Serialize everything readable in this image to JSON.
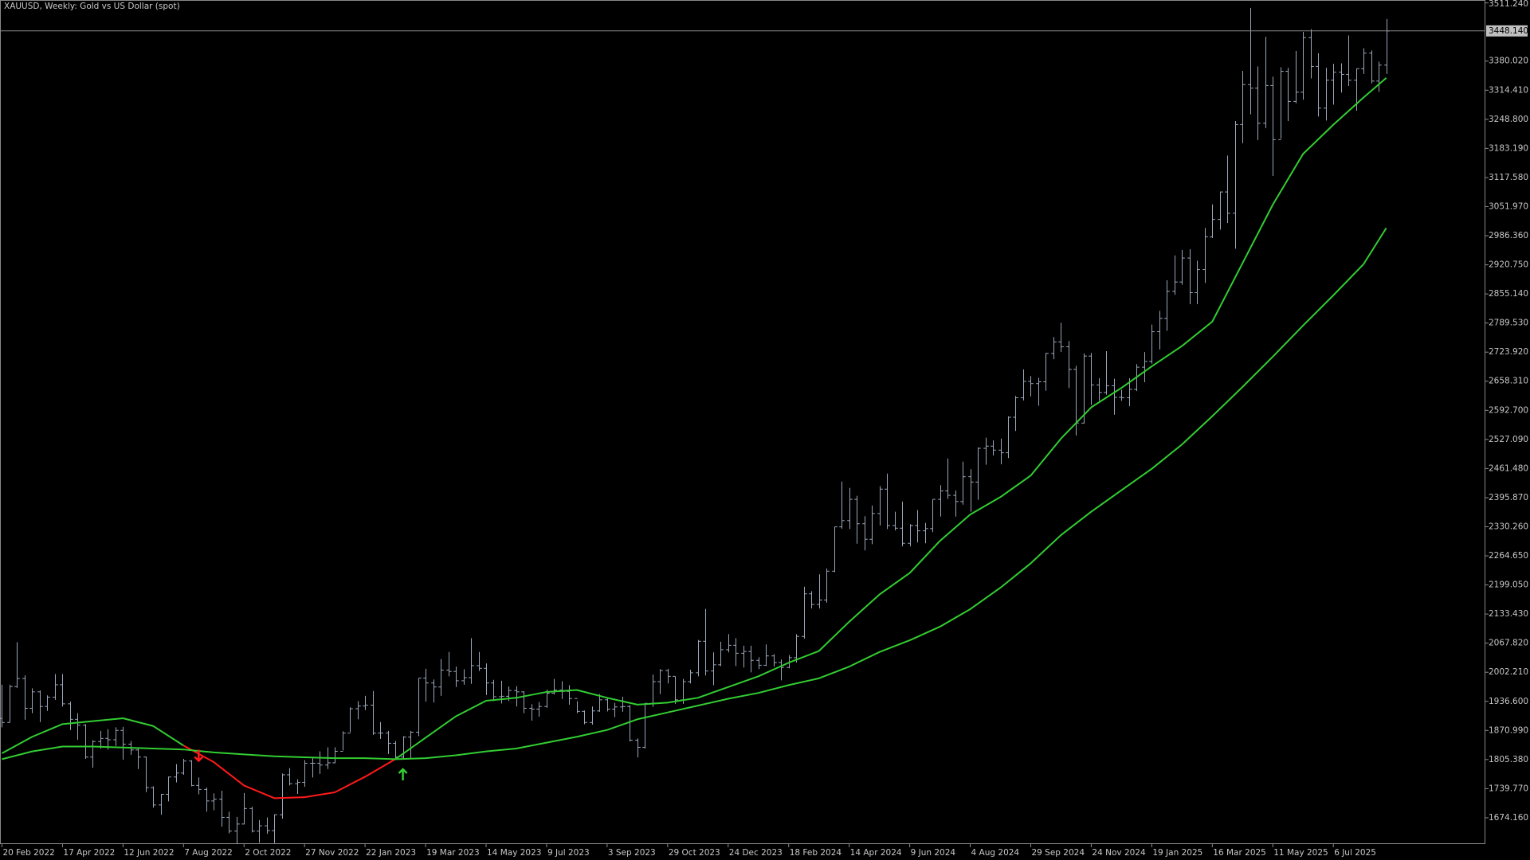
{
  "chart_data": {
    "type": "ohlc",
    "title": "XAUUSD, Weekly:  Gold vs US Dollar (spot)",
    "bar_color": "#9aa7ba",
    "background": "#000000",
    "grid": false,
    "xlim": [
      -0.26,
      196.1
    ],
    "ylim": [
      1614.8,
      3517.8
    ],
    "xticks": [
      {
        "value": 0,
        "label": "20 Feb 2022"
      },
      {
        "value": 8,
        "label": "17 Apr 2022"
      },
      {
        "value": 16,
        "label": "12 Jun 2022"
      },
      {
        "value": 24,
        "label": "7 Aug 2022"
      },
      {
        "value": 32,
        "label": "2 Oct 2022"
      },
      {
        "value": 40,
        "label": "27 Nov 2022"
      },
      {
        "value": 48,
        "label": "22 Jan 2023"
      },
      {
        "value": 56,
        "label": "19 Mar 2023"
      },
      {
        "value": 64,
        "label": "14 May 2023"
      },
      {
        "value": 72,
        "label": "9 Jul 2023"
      },
      {
        "value": 80,
        "label": "3 Sep 2023"
      },
      {
        "value": 88,
        "label": "29 Oct 2023"
      },
      {
        "value": 96,
        "label": "24 Dec 2023"
      },
      {
        "value": 104,
        "label": "18 Feb 2024"
      },
      {
        "value": 112,
        "label": "14 Apr 2024"
      },
      {
        "value": 120,
        "label": "9 Jun 2024"
      },
      {
        "value": 128,
        "label": "4 Aug 2024"
      },
      {
        "value": 136,
        "label": "29 Sep 2024"
      },
      {
        "value": 144,
        "label": "24 Nov 2024"
      },
      {
        "value": 152,
        "label": "19 Jan 2025"
      },
      {
        "value": 160,
        "label": "16 Mar 2025"
      },
      {
        "value": 168,
        "label": "11 May 2025"
      },
      {
        "value": 176,
        "label": "6 Jul 2025"
      }
    ],
    "yticks": [
      {
        "value": 3511.24,
        "label": "3511.240"
      },
      {
        "value": 3380.02,
        "label": "3380.020"
      },
      {
        "value": 3314.41,
        "label": "3314.410"
      },
      {
        "value": 3248.8,
        "label": "3248.800"
      },
      {
        "value": 3183.19,
        "label": "3183.190"
      },
      {
        "value": 3117.58,
        "label": "3117.580"
      },
      {
        "value": 3051.97,
        "label": "3051.970"
      },
      {
        "value": 2986.36,
        "label": "2986.360"
      },
      {
        "value": 2920.75,
        "label": "2920.750"
      },
      {
        "value": 2855.14,
        "label": "2855.140"
      },
      {
        "value": 2789.53,
        "label": "2789.530"
      },
      {
        "value": 2723.92,
        "label": "2723.920"
      },
      {
        "value": 2658.31,
        "label": "2658.310"
      },
      {
        "value": 2592.7,
        "label": "2592.700"
      },
      {
        "value": 2527.09,
        "label": "2527.090"
      },
      {
        "value": 2461.48,
        "label": "2461.480"
      },
      {
        "value": 2395.87,
        "label": "2395.870"
      },
      {
        "value": 2330.26,
        "label": "2330.260"
      },
      {
        "value": 2264.65,
        "label": "2264.650"
      },
      {
        "value": 2199.05,
        "label": "2199.050"
      },
      {
        "value": 2133.43,
        "label": "2133.430"
      },
      {
        "value": 2067.82,
        "label": "2067.820"
      },
      {
        "value": 2002.21,
        "label": "2002.210"
      },
      {
        "value": 1936.6,
        "label": "1936.600"
      },
      {
        "value": 1870.99,
        "label": "1870.990"
      },
      {
        "value": 1805.38,
        "label": "1805.380"
      },
      {
        "value": 1739.77,
        "label": "1739.770"
      },
      {
        "value": 1674.16,
        "label": "1674.160"
      }
    ],
    "current_price": {
      "value": 3448.14,
      "label": "3448.140"
    },
    "open": [
      1898,
      1889,
      1970,
      1988,
      1921,
      1958,
      1925,
      1946,
      1974,
      1931,
      1896,
      1883,
      1811,
      1846,
      1853,
      1850,
      1871,
      1840,
      1827,
      1811,
      1742,
      1703,
      1727,
      1766,
      1775,
      1802,
      1747,
      1738,
      1712,
      1716,
      1675,
      1644,
      1660,
      1695,
      1644,
      1656,
      1645,
      1681,
      1771,
      1751,
      1754,
      1797,
      1797,
      1793,
      1798,
      1824,
      1865,
      1920,
      1926,
      1928,
      1865,
      1865,
      1842,
      1811,
      1856,
      1867,
      1989,
      1978,
      1969,
      2007,
      2004,
      1983,
      1990,
      2017,
      2011,
      1978,
      1947,
      1948,
      1961,
      1958,
      1921,
      1919,
      1925,
      1955,
      1962,
      1959,
      1943,
      1914,
      1889,
      1915,
      1940,
      1919,
      1924,
      1925,
      1849,
      1833,
      1932,
      1981,
      2006,
      1993,
      1940,
      1981,
      2001,
      2072,
      2005,
      2019,
      2053,
      2063,
      2045,
      2049,
      2029,
      2018,
      2039,
      2024,
      2013,
      2035,
      2083,
      2179,
      2155,
      2165,
      2230,
      2330,
      2344,
      2392,
      2337,
      2302,
      2360,
      2415,
      2333,
      2327,
      2293,
      2333,
      2321,
      2326,
      2392,
      2411,
      2401,
      2387,
      2443,
      2431,
      2507,
      2512,
      2503,
      2497,
      2577,
      2621,
      2658,
      2653,
      2657,
      2721,
      2747,
      2736,
      2685,
      2564,
      2715,
      2650,
      2633,
      2648,
      2622,
      2621,
      2640,
      2690,
      2703,
      2770,
      2800,
      2861,
      2882,
      2936,
      2858,
      2910,
      2984,
      3023,
      3085,
      3037,
      3237,
      3327,
      3319,
      3240,
      3325,
      3203,
      3357,
      3289,
      3310,
      3433,
      3368,
      3274,
      3337,
      3355,
      3350,
      3337,
      3363,
      3398,
      3335,
      3371
    ],
    "high": [
      1974,
      1974,
      2070,
      1995,
      1966,
      1961,
      1950,
      1998,
      1998,
      1936,
      1910,
      1885,
      1849,
      1870,
      1874,
      1878,
      1879,
      1847,
      1830,
      1812,
      1745,
      1728,
      1767,
      1795,
      1807,
      1804,
      1765,
      1742,
      1729,
      1735,
      1688,
      1676,
      1730,
      1699,
      1669,
      1675,
      1682,
      1774,
      1786,
      1761,
      1804,
      1810,
      1824,
      1833,
      1833,
      1869,
      1923,
      1937,
      1949,
      1960,
      1890,
      1870,
      1847,
      1858,
      1870,
      1989,
      2010,
      1986,
      2032,
      2048,
      2015,
      2009,
      2079,
      2048,
      2022,
      1985,
      1983,
      1970,
      1971,
      1959,
      1930,
      1935,
      1963,
      1987,
      1982,
      1973,
      1937,
      1916,
      1925,
      1953,
      1944,
      1933,
      1947,
      1928,
      1853,
      1933,
      1997,
      2009,
      2010,
      1993,
      1987,
      2008,
      2075,
      2145,
      2047,
      2071,
      2088,
      2079,
      2062,
      2062,
      2036,
      2065,
      2043,
      2031,
      2041,
      2088,
      2195,
      2185,
      2223,
      2236,
      2330,
      2432,
      2418,
      2400,
      2354,
      2378,
      2422,
      2450,
      2364,
      2387,
      2336,
      2368,
      2339,
      2392,
      2424,
      2484,
      2412,
      2477,
      2460,
      2509,
      2531,
      2525,
      2529,
      2579,
      2625,
      2685,
      2670,
      2666,
      2722,
      2758,
      2790,
      2749,
      2693,
      2721,
      2722,
      2665,
      2726,
      2664,
      2639,
      2665,
      2697,
      2724,
      2786,
      2817,
      2886,
      2942,
      2954,
      2956,
      2930,
      3004,
      3057,
      3086,
      3167,
      3245,
      3358,
      3500,
      3368,
      3435,
      3345,
      3366,
      3365,
      3403,
      3446,
      3452,
      3398,
      3365,
      3374,
      3375,
      3438,
      3363,
      3409,
      3404,
      3379,
      3475
    ],
    "low": [
      1878,
      1889,
      1967,
      1895,
      1910,
      1890,
      1915,
      1940,
      1925,
      1872,
      1850,
      1807,
      1787,
      1830,
      1828,
      1836,
      1805,
      1816,
      1784,
      1732,
      1697,
      1681,
      1711,
      1754,
      1771,
      1745,
      1727,
      1688,
      1691,
      1654,
      1639,
      1615,
      1659,
      1641,
      1618,
      1638,
      1617,
      1672,
      1747,
      1728,
      1744,
      1765,
      1773,
      1784,
      1797,
      1826,
      1867,
      1896,
      1917,
      1861,
      1852,
      1818,
      1805,
      1805,
      1809,
      1858,
      1936,
      1934,
      1949,
      1993,
      1969,
      1974,
      1976,
      2005,
      1951,
      1937,
      1932,
      1937,
      1925,
      1910,
      1893,
      1902,
      1922,
      1952,
      1942,
      1929,
      1910,
      1885,
      1884,
      1913,
      1914,
      1901,
      1913,
      1846,
      1810,
      1830,
      1924,
      1953,
      1977,
      1931,
      1931,
      1977,
      1993,
      1995,
      1973,
      2016,
      2047,
      2016,
      2013,
      2002,
      2009,
      2016,
      2015,
      1984,
      2011,
      2024,
      2078,
      2146,
      2146,
      2159,
      2228,
      2326,
      2325,
      2292,
      2277,
      2291,
      2333,
      2325,
      2322,
      2286,
      2286,
      2295,
      2293,
      2318,
      2353,
      2393,
      2353,
      2380,
      2364,
      2391,
      2470,
      2491,
      2471,
      2485,
      2546,
      2615,
      2624,
      2603,
      2637,
      2708,
      2724,
      2643,
      2536,
      2563,
      2605,
      2614,
      2628,
      2583,
      2614,
      2602,
      2636,
      2656,
      2698,
      2730,
      2772,
      2853,
      2876,
      2832,
      2832,
      2880,
      2981,
      3000,
      3015,
      2957,
      3195,
      3260,
      3202,
      3229,
      3121,
      3205,
      3245,
      3285,
      3293,
      3341,
      3255,
      3246,
      3282,
      3309,
      3324,
      3268,
      3351,
      3330,
      3311,
      3351
    ],
    "close": [
      1889,
      1970,
      1988,
      1921,
      1958,
      1925,
      1946,
      1974,
      1931,
      1896,
      1883,
      1811,
      1846,
      1853,
      1850,
      1871,
      1840,
      1827,
      1811,
      1742,
      1703,
      1727,
      1766,
      1775,
      1802,
      1747,
      1738,
      1712,
      1716,
      1675,
      1644,
      1660,
      1695,
      1644,
      1656,
      1645,
      1681,
      1771,
      1751,
      1754,
      1797,
      1797,
      1793,
      1798,
      1824,
      1865,
      1920,
      1926,
      1928,
      1865,
      1865,
      1842,
      1811,
      1856,
      1867,
      1989,
      1978,
      1969,
      2007,
      2004,
      1983,
      1990,
      2017,
      2011,
      1978,
      1947,
      1948,
      1961,
      1958,
      1921,
      1919,
      1925,
      1955,
      1962,
      1959,
      1943,
      1914,
      1889,
      1915,
      1940,
      1919,
      1924,
      1925,
      1849,
      1833,
      1932,
      1981,
      2006,
      1993,
      1940,
      1981,
      2001,
      2072,
      2005,
      2019,
      2053,
      2063,
      2045,
      2049,
      2029,
      2018,
      2039,
      2024,
      2013,
      2035,
      2083,
      2179,
      2155,
      2165,
      2230,
      2330,
      2344,
      2392,
      2337,
      2302,
      2360,
      2415,
      2333,
      2327,
      2293,
      2333,
      2321,
      2326,
      2392,
      2411,
      2401,
      2387,
      2443,
      2431,
      2507,
      2512,
      2503,
      2497,
      2577,
      2621,
      2658,
      2653,
      2657,
      2721,
      2747,
      2736,
      2685,
      2564,
      2715,
      2650,
      2633,
      2648,
      2622,
      2621,
      2640,
      2690,
      2703,
      2770,
      2800,
      2861,
      2882,
      2936,
      2858,
      2910,
      2984,
      3023,
      3085,
      3037,
      3237,
      3327,
      3319,
      3240,
      3325,
      3203,
      3357,
      3289,
      3310,
      3433,
      3368,
      3274,
      3337,
      3355,
      3350,
      3337,
      3363,
      3398,
      3335,
      3371,
      3448.14
    ],
    "lines": [
      {
        "color": "#32cd32",
        "x": [
          0,
          4,
          8,
          12,
          16,
          20,
          24
        ],
        "values": [
          1819.4,
          1856.7,
          1885.3,
          1891.9,
          1898.5,
          1880.9,
          1837.0
        ]
      },
      {
        "color": "#ff1a1a",
        "x": [
          24,
          28,
          32,
          36,
          40,
          44,
          48,
          52
        ],
        "values": [
          1837.0,
          1799.6,
          1746.9,
          1718.3,
          1720.5,
          1731.5,
          1766.6,
          1806.2
        ]
      },
      {
        "color": "#32cd32",
        "x": [
          52,
          56,
          60,
          64,
          68,
          72,
          76,
          80,
          84,
          88,
          92,
          96,
          100,
          104,
          108,
          112,
          116,
          120,
          124,
          128,
          132,
          136,
          140,
          144,
          148,
          152,
          156,
          160,
          164,
          168,
          172,
          176,
          180,
          183
        ],
        "values": [
          1806.2,
          1854.5,
          1902.8,
          1938.0,
          1944.6,
          1957.8,
          1962.2,
          1944.6,
          1929.2,
          1933.6,
          1944.6,
          1968.8,
          1993.0,
          2023.7,
          2050.1,
          2116.0,
          2177.5,
          2225.9,
          2298.4,
          2357.8,
          2397.3,
          2445.6,
          2529.1,
          2599.5,
          2643.4,
          2691.8,
          2737.9,
          2792.7,
          2924.6,
          3056.4,
          3170.8,
          3236.6,
          3298.1,
          3342.1
        ]
      },
      {
        "color": "#32cd32",
        "x": [
          0,
          4,
          8,
          12,
          16,
          20,
          24,
          28,
          32,
          36,
          40,
          44,
          48,
          52,
          56,
          60,
          64,
          68,
          72,
          76,
          80,
          84,
          88,
          92,
          96,
          100,
          104,
          108,
          112,
          116,
          120,
          124,
          128,
          132,
          136,
          140,
          144,
          148,
          152,
          156,
          160,
          164,
          168,
          172,
          176,
          180,
          183
        ],
        "values": [
          1806.2,
          1823.7,
          1834.7,
          1834.7,
          1832.5,
          1830.3,
          1828.1,
          1821.5,
          1817.1,
          1812.7,
          1810.5,
          1808.4,
          1808.4,
          1806.2,
          1808.4,
          1815.0,
          1823.7,
          1830.3,
          1843.5,
          1856.7,
          1872.1,
          1896.2,
          1911.6,
          1927.0,
          1942.4,
          1955.6,
          1973.2,
          1988.5,
          2014.9,
          2047.8,
          2074.2,
          2105.0,
          2144.5,
          2192.9,
          2247.8,
          2311.5,
          2364.2,
          2412.6,
          2460.9,
          2515.8,
          2579.5,
          2645.5,
          2713.6,
          2783.9,
          2852.0,
          2922.4,
          3003.7
        ]
      }
    ],
    "signals": [
      {
        "x": 26,
        "y": 1815,
        "direction": "down",
        "color": "#ff1a1a"
      },
      {
        "x": 53,
        "y": 1771,
        "direction": "up",
        "color": "#32cd32"
      }
    ]
  }
}
